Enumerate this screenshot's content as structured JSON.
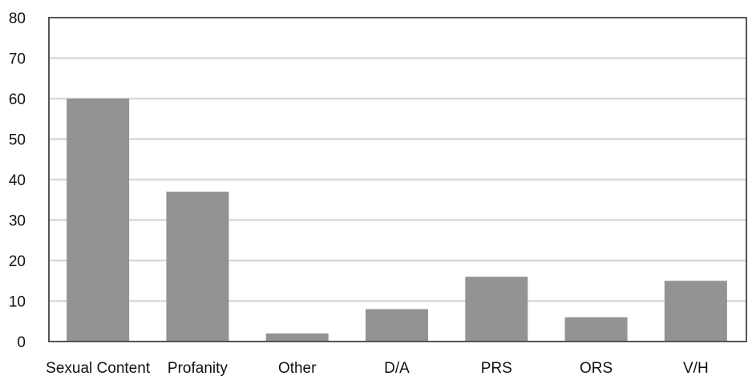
{
  "chart_data": {
    "type": "bar",
    "title": "",
    "xlabel": "",
    "ylabel": "",
    "categories": [
      "Sexual Content",
      "Profanity",
      "Other",
      "D/A",
      "PRS",
      "ORS",
      "V/H"
    ],
    "values": [
      60,
      37,
      2,
      8,
      16,
      6,
      15
    ],
    "ylim": [
      0,
      80
    ],
    "yticks": [
      "0",
      "10",
      "20",
      "30",
      "40",
      "50",
      "60",
      "70",
      "80"
    ],
    "grid": true,
    "legend": "none",
    "bar_color": "#939393",
    "grid_color": "#d9d9d9",
    "axis_color": "#555555"
  }
}
